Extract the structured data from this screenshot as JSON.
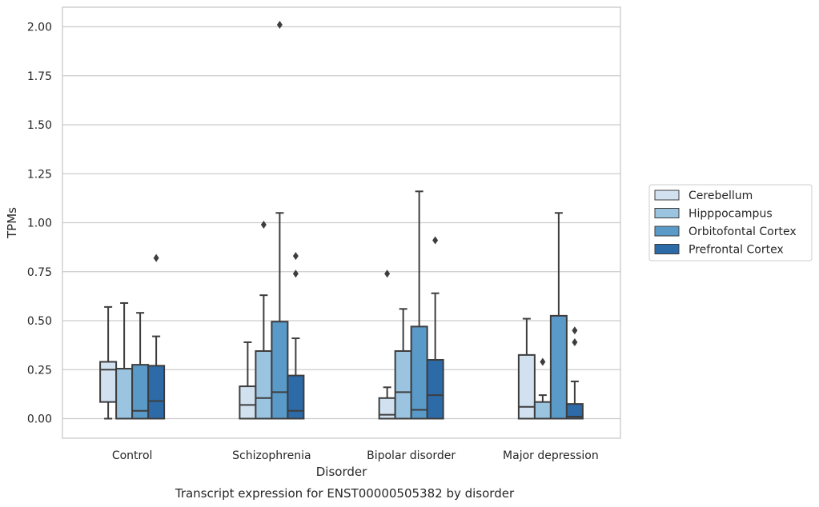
{
  "chart_data": {
    "type": "boxplot",
    "title": "Transcript expression for ENST00000505382 by disorder",
    "xlabel": "Disorder",
    "ylabel": "TPMs",
    "ylim": [
      -0.1,
      2.1
    ],
    "yticks": [
      0.0,
      0.25,
      0.5,
      0.75,
      1.0,
      1.25,
      1.5,
      1.75,
      2.0
    ],
    "ytick_labels": [
      "0.00",
      "0.25",
      "0.50",
      "0.75",
      "1.00",
      "1.25",
      "1.50",
      "1.75",
      "2.00"
    ],
    "grid": true,
    "legend_position": "right",
    "categories": [
      "Control",
      "Schizophrenia",
      "Bipolar disorder",
      "Major depression"
    ],
    "series": [
      {
        "name": "Cerebellum",
        "color": "#d2e1f0",
        "boxes": [
          {
            "whislo": 0.0,
            "q1": 0.085,
            "med": 0.25,
            "q3": 0.29,
            "whishi": 0.57,
            "fliers": []
          },
          {
            "whislo": 0.0,
            "q1": 0.0,
            "med": 0.07,
            "q3": 0.165,
            "whishi": 0.39,
            "fliers": []
          },
          {
            "whislo": 0.0,
            "q1": 0.0,
            "med": 0.02,
            "q3": 0.105,
            "whishi": 0.16,
            "fliers": [
              0.74
            ]
          },
          {
            "whislo": 0.0,
            "q1": 0.0,
            "med": 0.06,
            "q3": 0.325,
            "whishi": 0.51,
            "fliers": []
          }
        ]
      },
      {
        "name": "Hipppocampus",
        "color": "#9ac4e0",
        "boxes": [
          {
            "whislo": 0.0,
            "q1": 0.0,
            "med": 0.0,
            "q3": 0.255,
            "whishi": 0.59,
            "fliers": []
          },
          {
            "whislo": 0.0,
            "q1": 0.0,
            "med": 0.105,
            "q3": 0.345,
            "whishi": 0.63,
            "fliers": [
              0.99
            ]
          },
          {
            "whislo": 0.0,
            "q1": 0.0,
            "med": 0.135,
            "q3": 0.345,
            "whishi": 0.56,
            "fliers": []
          },
          {
            "whislo": 0.0,
            "q1": 0.0,
            "med": 0.0,
            "q3": 0.085,
            "whishi": 0.12,
            "fliers": [
              0.29
            ]
          }
        ]
      },
      {
        "name": "Orbitofontal Cortex",
        "color": "#5a9ac8",
        "boxes": [
          {
            "whislo": 0.0,
            "q1": 0.0,
            "med": 0.04,
            "q3": 0.275,
            "whishi": 0.54,
            "fliers": []
          },
          {
            "whislo": 0.0,
            "q1": 0.0,
            "med": 0.135,
            "q3": 0.495,
            "whishi": 1.05,
            "fliers": [
              2.01
            ]
          },
          {
            "whislo": 0.0,
            "q1": 0.0,
            "med": 0.045,
            "q3": 0.47,
            "whishi": 1.16,
            "fliers": []
          },
          {
            "whislo": 0.0,
            "q1": 0.0,
            "med": 0.0,
            "q3": 0.525,
            "whishi": 1.05,
            "fliers": []
          }
        ]
      },
      {
        "name": "Prefrontal Cortex",
        "color": "#2d6aa8",
        "boxes": [
          {
            "whislo": 0.0,
            "q1": 0.0,
            "med": 0.09,
            "q3": 0.27,
            "whishi": 0.42,
            "fliers": [
              0.82
            ]
          },
          {
            "whislo": 0.0,
            "q1": 0.0,
            "med": 0.04,
            "q3": 0.22,
            "whishi": 0.41,
            "fliers": [
              0.74,
              0.83
            ]
          },
          {
            "whislo": 0.0,
            "q1": 0.0,
            "med": 0.12,
            "q3": 0.3,
            "whishi": 0.64,
            "fliers": [
              0.91
            ]
          },
          {
            "whislo": 0.0,
            "q1": 0.0,
            "med": 0.01,
            "q3": 0.075,
            "whishi": 0.19,
            "fliers": [
              0.39,
              0.45
            ]
          }
        ]
      }
    ]
  }
}
